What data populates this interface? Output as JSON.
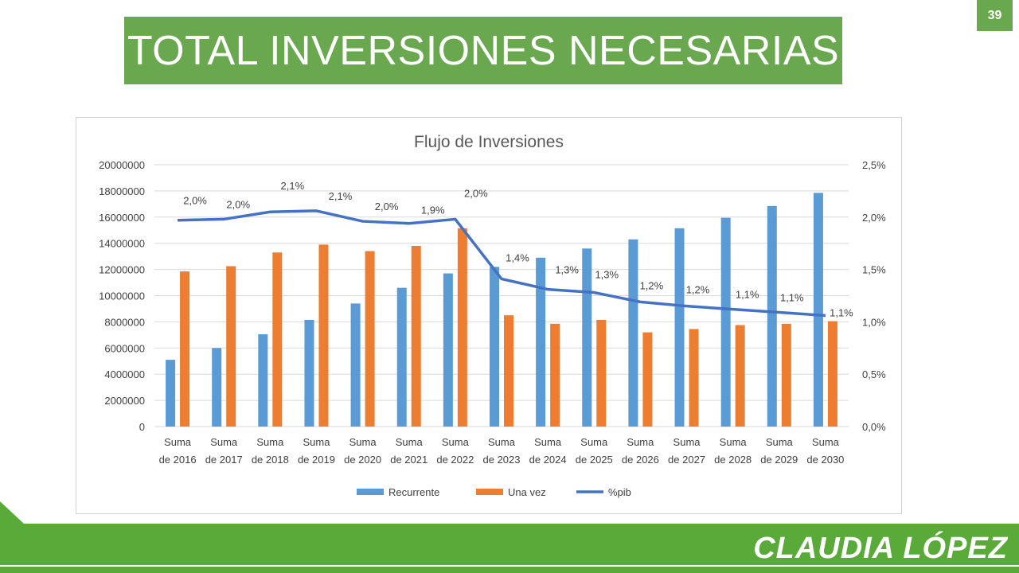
{
  "slide": {
    "title": "TOTAL INVERSIONES NECESARIAS",
    "page_number": "39",
    "brand": "CLAUDIA LÓPEZ",
    "accent_color": "#6aa84f",
    "footer_color": "#5aaa3a"
  },
  "chart_data": {
    "type": "bar",
    "title": "Flujo de Inversiones",
    "categories": [
      [
        "Suma",
        "de 2016"
      ],
      [
        "Suma",
        "de 2017"
      ],
      [
        "Suma",
        "de 2018"
      ],
      [
        "Suma",
        "de 2019"
      ],
      [
        "Suma",
        "de 2020"
      ],
      [
        "Suma",
        "de 2021"
      ],
      [
        "Suma",
        "de 2022"
      ],
      [
        "Suma",
        "de 2023"
      ],
      [
        "Suma",
        "de 2024"
      ],
      [
        "Suma",
        "de 2025"
      ],
      [
        "Suma",
        "de 2026"
      ],
      [
        "Suma",
        "de 2027"
      ],
      [
        "Suma",
        "de 2028"
      ],
      [
        "Suma",
        "de 2029"
      ],
      [
        "Suma",
        "de 2030"
      ]
    ],
    "series": [
      {
        "name": "Recurrente",
        "type": "bar",
        "axis": "left",
        "color": "#5b9bd5",
        "values": [
          5100000,
          6000000,
          7050000,
          8150000,
          9400000,
          10600000,
          11700000,
          12200000,
          12900000,
          13600000,
          14300000,
          15150000,
          15950000,
          16850000,
          17850000
        ]
      },
      {
        "name": "Una vez",
        "type": "bar",
        "axis": "left",
        "color": "#ed7d31",
        "values": [
          11850000,
          12250000,
          13300000,
          13900000,
          13400000,
          13800000,
          15150000,
          8500000,
          7850000,
          8150000,
          7200000,
          7450000,
          7750000,
          7850000,
          8050000
        ]
      },
      {
        "name": "%pib",
        "type": "line",
        "axis": "right",
        "color": "#4472c4",
        "values": [
          1.97,
          1.98,
          2.05,
          2.06,
          1.96,
          1.94,
          1.98,
          1.41,
          1.31,
          1.28,
          1.19,
          1.15,
          1.12,
          1.09,
          1.06
        ],
        "labels": [
          "2,0%",
          "2,0%",
          "2,1%",
          "2,1%",
          "2,0%",
          "1,9%",
          "2,0%",
          "1,4%",
          "1,3%",
          "1,3%",
          "1,2%",
          "1,2%",
          "1,1%",
          "1,1%",
          "1,1%"
        ]
      }
    ],
    "y_left": {
      "min": 0,
      "max": 20000000,
      "ticks": [
        "0",
        "2000000",
        "4000000",
        "6000000",
        "8000000",
        "10000000",
        "12000000",
        "14000000",
        "16000000",
        "18000000",
        "20000000"
      ]
    },
    "y_right": {
      "min": 0,
      "max": 2.5,
      "ticks": [
        "0,0%",
        "0,5%",
        "1,0%",
        "1,5%",
        "2,0%",
        "2,5%"
      ]
    },
    "grid": true,
    "legend_position": "bottom"
  }
}
